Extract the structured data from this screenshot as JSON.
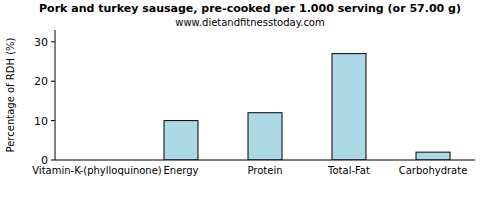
{
  "chart_data": {
    "type": "bar",
    "title": "Pork and turkey sausage, pre-cooked per 1.000 serving (or 57.00 g)",
    "subtitle": "www.dietandfitnesstoday.com",
    "y_label": "Percentage of RDH (%)",
    "categories": [
      "Vitamin-K-(phylloquinone)",
      "Energy",
      "Protein",
      "Total-Fat",
      "Carbohydrate"
    ],
    "values": [
      0,
      10,
      12,
      27,
      2
    ],
    "color": "#add8e6",
    "ylim": [
      0,
      33
    ],
    "yticks": [
      0,
      10,
      20,
      30
    ],
    "grid": false
  }
}
